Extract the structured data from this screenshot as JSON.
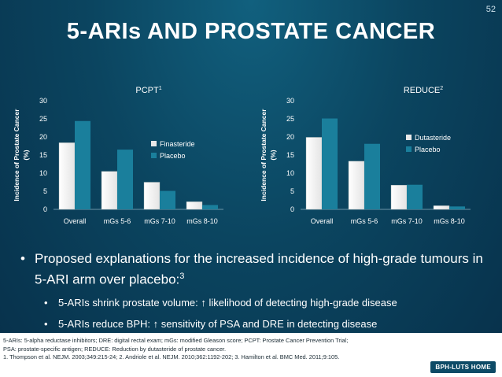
{
  "page_number": "52",
  "title": "5-ARIs AND PROSTATE CANCER",
  "bullets": {
    "main": "Proposed explanations for the increased incidence of high-grade tumours in 5-ARI arm over placebo:",
    "main_ref": "3",
    "sub": [
      "5-ARIs shrink prostate volume: ↑ likelihood of detecting high-grade disease",
      "5-ARIs reduce BPH: ↑ sensitivity of PSA and DRE in detecting disease"
    ]
  },
  "footnotes": [
    "5-ARIs: 5-alpha reductase inhibitors; DRE: digital rectal exam; mGs: modified Gleason score; PCPT: Prostate Cancer Prevention Trial;",
    "PSA: prostate-specific antigen; REDUCE: Reduction by dutasteride of prostate cancer.",
    "1. Thompson et al. NEJM. 2003;349:215-24; 2. Andriole et al. NEJM. 2010;362:1192-202; 3. Hamilton et al. BMC Med. 2011;9:105."
  ],
  "home_button": "BPH-LUTS HOME",
  "colors": {
    "treatment_bar": "#e4e4e4",
    "placebo_bar": "#1a7f9c",
    "background": "#0b4560"
  },
  "chart_data": [
    {
      "type": "bar",
      "title": "PCPT",
      "title_ref": "1",
      "ylabel_line1": "Incidence of Prostate Cancer",
      "ylabel_line2": "(%)",
      "categories": [
        "Overall",
        "mGs 5-6",
        "mGs 7-10",
        "mGs 8-10"
      ],
      "ylim": [
        0,
        30
      ],
      "yticks": [
        "0",
        "5",
        "10",
        "15",
        "20",
        "25",
        "30"
      ],
      "series": [
        {
          "name": "Finasteride",
          "values": [
            18.4,
            10.5,
            7.5,
            2.1
          ]
        },
        {
          "name": "Placebo",
          "values": [
            24.4,
            16.5,
            5.1,
            1.2
          ]
        }
      ],
      "legend": "right"
    },
    {
      "type": "bar",
      "title": "REDUCE",
      "title_ref": "2",
      "ylabel_line1": "Incidence of Prostate Cancer",
      "ylabel_line2": "(%)",
      "categories": [
        "Overall",
        "mGs 5-6",
        "mGs 7-10",
        "mGs 8-10"
      ],
      "ylim": [
        0,
        30
      ],
      "yticks": [
        "0",
        "5",
        "10",
        "15",
        "20",
        "25",
        "30"
      ],
      "series": [
        {
          "name": "Dutasteride",
          "values": [
            19.9,
            13.3,
            6.7,
            1.0
          ]
        },
        {
          "name": "Placebo",
          "values": [
            25.1,
            18.1,
            6.8,
            0.8
          ]
        }
      ],
      "legend": "top-right"
    }
  ]
}
